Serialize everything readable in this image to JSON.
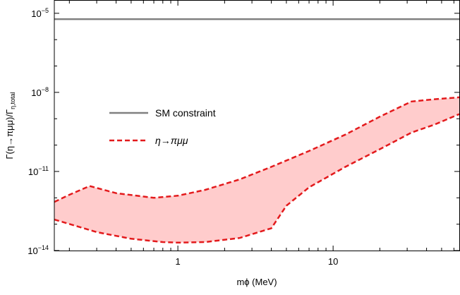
{
  "chart_data": {
    "type": "area",
    "title": "",
    "xlabel": "mϕ (MeV)",
    "ylabel": "Γ(η→πμμ)/Γ",
    "ylabel_subscript": "η,total",
    "x_scale": "log",
    "y_scale": "log",
    "xlim": [
      0.16,
      65
    ],
    "ylim": [
      1e-14,
      3e-05
    ],
    "grid": false,
    "legend_placement": "center-left",
    "x_tick_labels": [
      {
        "value": 1,
        "label": "1"
      },
      {
        "value": 10,
        "label": "10"
      }
    ],
    "y_tick_labels": [
      {
        "value": 1e-05,
        "base": "10",
        "exp": "−5"
      },
      {
        "value": 1e-08,
        "base": "10",
        "exp": "−8"
      },
      {
        "value": 1e-11,
        "base": "10",
        "exp": "−11"
      },
      {
        "value": 1e-14,
        "base": "10",
        "exp": "−14"
      }
    ],
    "series": [
      {
        "name": "SM constraint",
        "kind": "horizontal-line",
        "color": "#808080",
        "y": 6e-06
      },
      {
        "name": "η→πμμ",
        "kind": "band",
        "line_color": "#e31a1c",
        "fill_color": "#ffcccc",
        "upper": {
          "x": [
            0.16,
            0.2,
            0.27,
            0.4,
            0.7,
            1.0,
            1.5,
            2.5,
            4.0,
            7.0,
            12.0,
            20.0,
            32.0,
            45.0,
            65.0
          ],
          "y": [
            7e-13,
            1.3e-12,
            2.8e-12,
            1.5e-12,
            1e-12,
            1.2e-12,
            2e-12,
            5e-12,
            1.5e-11,
            6e-11,
            2.5e-10,
            1.2e-09,
            4.5e-09,
            5.5e-09,
            6.5e-09
          ]
        },
        "lower": {
          "x": [
            0.16,
            0.3,
            0.5,
            0.8,
            1.0,
            1.5,
            2.5,
            4.0,
            5.0,
            7.0,
            12.0,
            20.0,
            32.0,
            45.0,
            65.0
          ],
          "y": [
            1.5e-13,
            5e-14,
            2.8e-14,
            2.1e-14,
            2e-14,
            2.1e-14,
            3e-14,
            7e-14,
            5e-13,
            2.5e-12,
            1.5e-11,
            7e-11,
            3e-10,
            6e-10,
            1.5e-09
          ]
        }
      }
    ]
  }
}
